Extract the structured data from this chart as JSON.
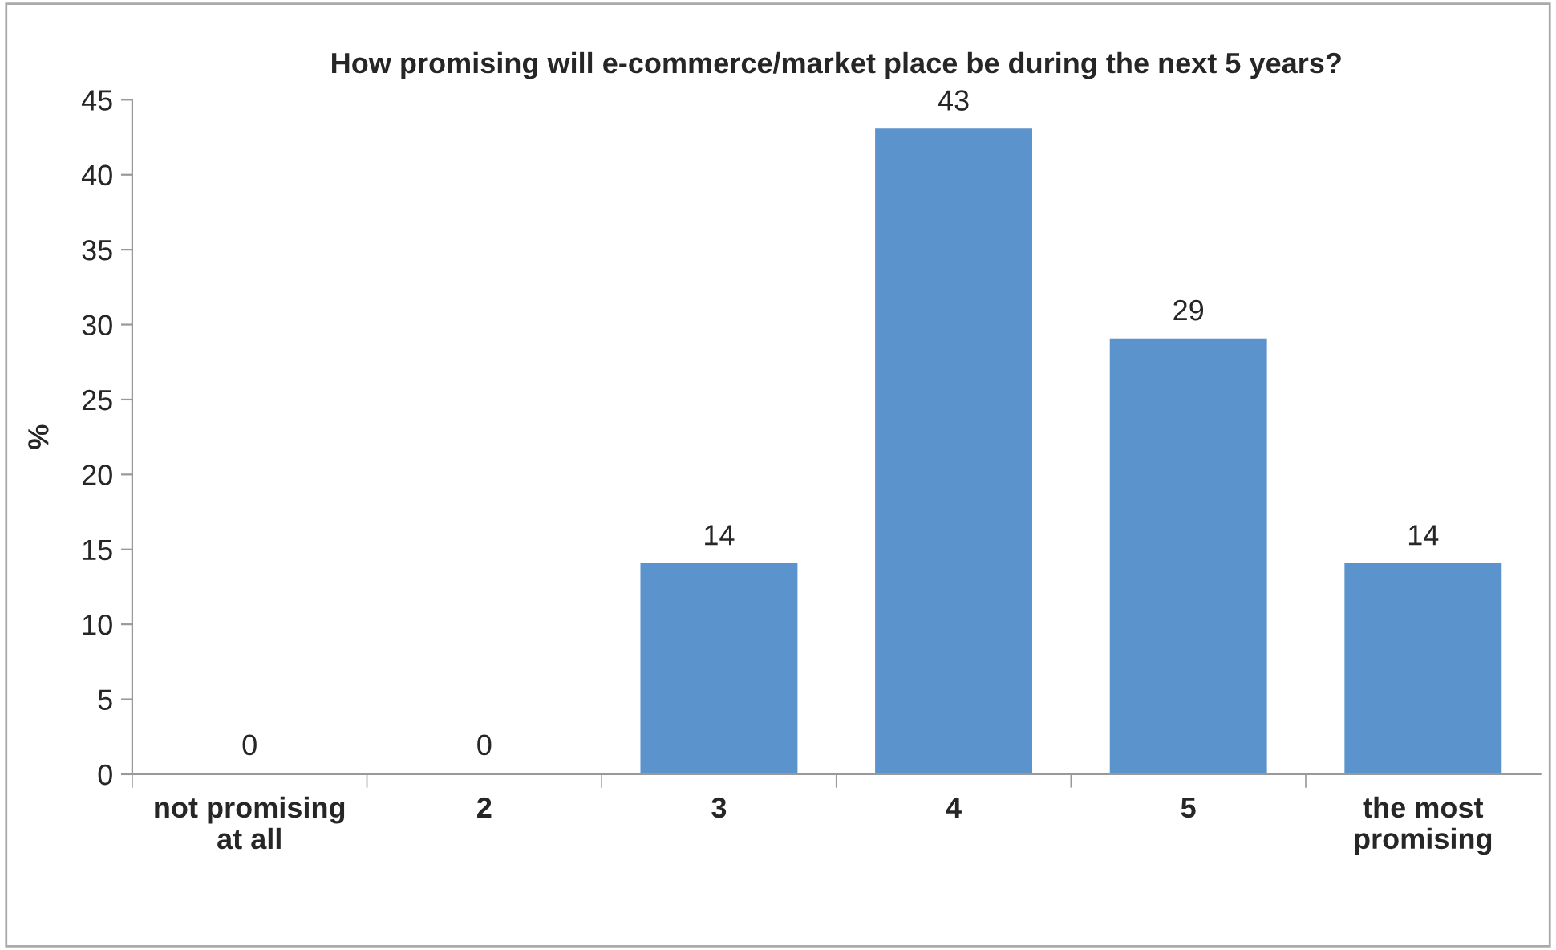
{
  "chart_data": {
    "type": "bar",
    "title": "How promising will e-commerce/market place be during the next 5 years?",
    "ylabel": "%",
    "categories": [
      "not promising\nat all",
      "2",
      "3",
      "4",
      "5",
      "the most\npromising"
    ],
    "values": [
      0,
      0,
      14,
      43,
      29,
      14
    ],
    "color": "#5b93cc",
    "ylim": [
      0,
      45
    ],
    "yticks": [
      0,
      5,
      10,
      15,
      20,
      25,
      30,
      35,
      40,
      45
    ],
    "data_labels": true,
    "grid": false,
    "legend": false
  }
}
